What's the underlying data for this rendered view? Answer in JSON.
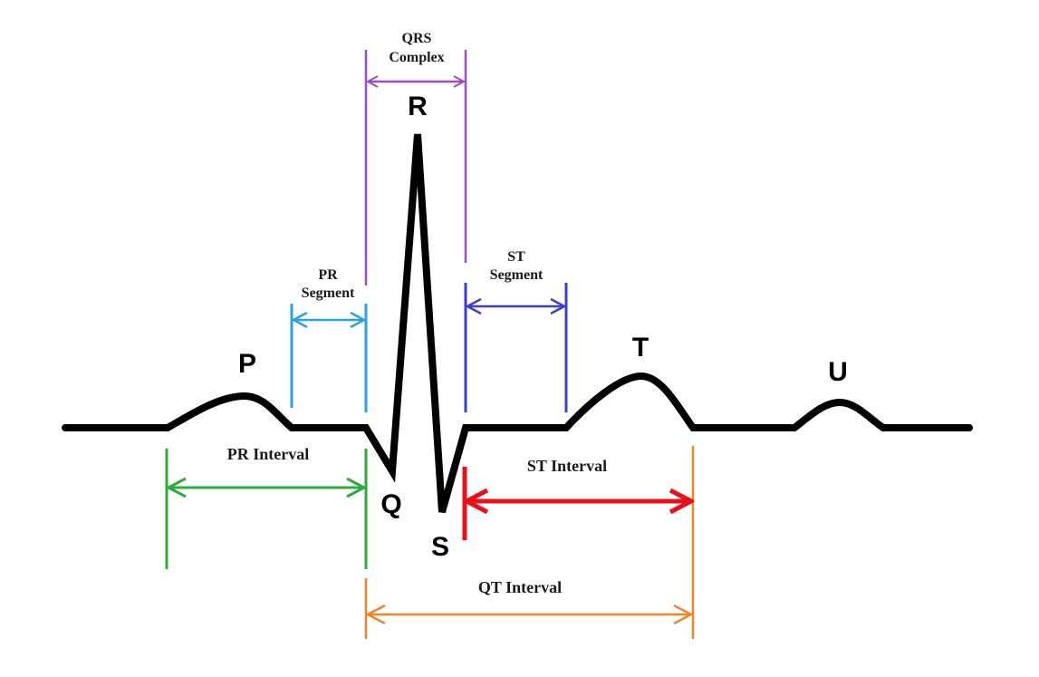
{
  "waves": {
    "p": "P",
    "q": "Q",
    "r": "R",
    "s": "S",
    "t": "T",
    "u": "U"
  },
  "brackets": {
    "qrs_complex": {
      "line1": "QRS",
      "line2": "Complex",
      "color": "#9b4fc0"
    },
    "pr_segment": {
      "line1": "PR",
      "line2": "Segment",
      "color": "#29a3e0"
    },
    "st_segment": {
      "line1": "ST",
      "line2": "Segment",
      "color": "#3b3fd0"
    },
    "pr_interval": {
      "label": "PR Interval",
      "color": "#2eaa3e"
    },
    "st_interval": {
      "label": "ST Interval",
      "color": "#e5121b"
    },
    "qt_interval": {
      "label": "QT Interval",
      "color": "#f2842a"
    }
  },
  "trace_color": "#000000"
}
